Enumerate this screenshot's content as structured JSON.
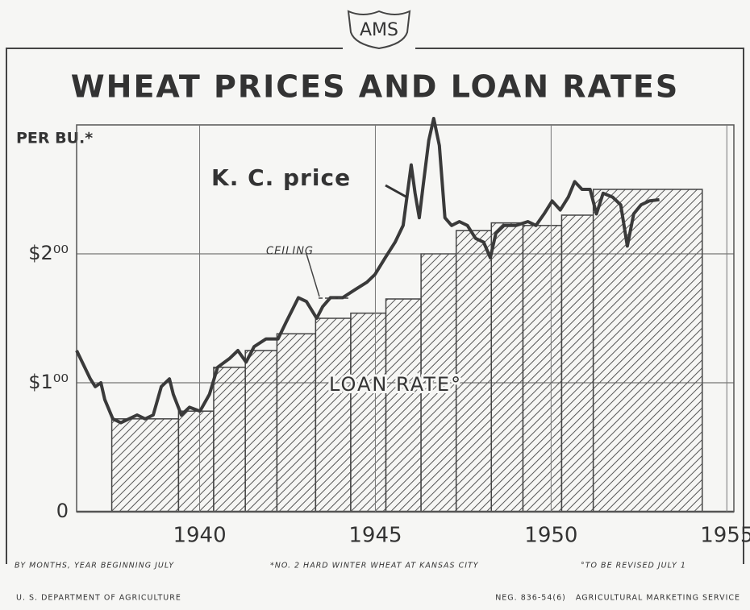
{
  "logo": "AMS",
  "chart_data": {
    "type": "line",
    "title": "WHEAT PRICES AND LOAN RATES",
    "y_label": "PER BU.*",
    "xlim": [
      1936.5,
      1955.2
    ],
    "xticks": [
      1940,
      1945,
      1950,
      1955
    ],
    "ylim": [
      0,
      3
    ],
    "yticks": [
      0,
      {
        "value": 1,
        "label": "$1⁰⁰"
      },
      {
        "value": 2,
        "label": "$2⁰⁰"
      }
    ],
    "grid": true,
    "series": [
      {
        "name": "K. C. price",
        "color": "#3a3a3a",
        "x": [
          1936.5,
          1936.73,
          1936.89,
          1937.03,
          1937.19,
          1937.3,
          1937.53,
          1937.76,
          1937.99,
          1938.22,
          1938.45,
          1938.68,
          1938.91,
          1939.14,
          1939.25,
          1939.48,
          1939.71,
          1940.01,
          1940.28,
          1940.51,
          1940.86,
          1941.09,
          1941.32,
          1941.55,
          1941.89,
          1942.23,
          1942.46,
          1942.81,
          1943.04,
          1943.33,
          1943.5,
          1943.72,
          1944.07,
          1944.41,
          1944.76,
          1944.99,
          1945.28,
          1945.56,
          1945.79,
          1946.02,
          1946.13,
          1946.25,
          1946.36,
          1946.52,
          1946.66,
          1946.82,
          1946.98,
          1947.17,
          1947.39,
          1947.62,
          1947.85,
          1948.08,
          1948.27,
          1948.43,
          1948.66,
          1949.0,
          1949.34,
          1949.57,
          1949.8,
          1950.03,
          1950.26,
          1950.49,
          1950.67,
          1950.88,
          1951.11,
          1951.29,
          1951.48,
          1951.75,
          1951.98,
          1952.17,
          1952.35,
          1952.56,
          1952.79,
          1953.08
        ],
        "values": [
          1.25,
          1.12,
          1.03,
          0.97,
          1.0,
          0.87,
          0.72,
          0.69,
          0.72,
          0.75,
          0.72,
          0.75,
          0.97,
          1.03,
          0.91,
          0.75,
          0.81,
          0.78,
          0.91,
          1.12,
          1.19,
          1.25,
          1.16,
          1.28,
          1.34,
          1.34,
          1.47,
          1.66,
          1.63,
          1.5,
          1.59,
          1.66,
          1.66,
          1.72,
          1.78,
          1.84,
          1.97,
          2.09,
          2.22,
          2.69,
          2.47,
          2.28,
          2.53,
          2.88,
          3.05,
          2.84,
          2.28,
          2.22,
          2.25,
          2.22,
          2.12,
          2.09,
          1.97,
          2.16,
          2.22,
          2.22,
          2.25,
          2.22,
          2.31,
          2.41,
          2.34,
          2.44,
          2.56,
          2.5,
          2.5,
          2.31,
          2.47,
          2.44,
          2.38,
          2.06,
          2.31,
          2.38,
          2.41,
          2.42
        ]
      }
    ],
    "loan_rate": {
      "name": "LOAN RATE°",
      "bins": [
        1937.5,
        1939.4,
        1940.4,
        1941.3,
        1942.2,
        1943.3,
        1944.3,
        1945.3,
        1946.3,
        1947.3,
        1948.3,
        1949.2,
        1950.3,
        1951.2,
        1954.3
      ],
      "values": [
        0.72,
        0.78,
        1.12,
        1.25,
        1.38,
        1.5,
        1.54,
        1.65,
        2.0,
        2.18,
        2.24,
        2.22,
        2.3,
        2.5
      ]
    },
    "annotations": [
      "CEILING"
    ],
    "notes": [
      "BY MONTHS, YEAR BEGINNING JULY",
      "*NO. 2 HARD WINTER WHEAT AT KANSAS CITY",
      "°TO BE REVISED JULY 1"
    ]
  },
  "footer": {
    "left": "U. S. DEPARTMENT OF AGRICULTURE",
    "right": "NEG. 836-54(6)   AGRICULTURAL MARKETING SERVICE"
  }
}
